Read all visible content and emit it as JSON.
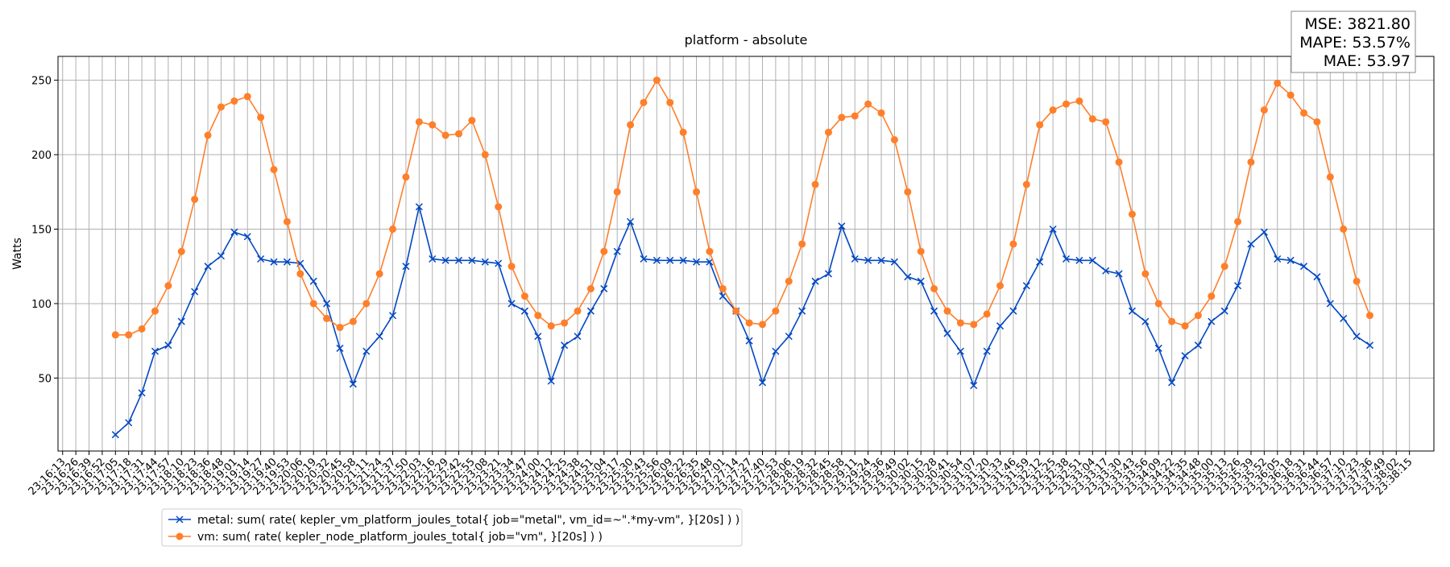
{
  "chart_data": {
    "type": "line",
    "title": "platform - absolute",
    "y_label": "Watts",
    "annotations": [
      "MSE: 3821.80",
      "MAPE: 53.57%",
      "MAE: 53.97"
    ],
    "categories": [
      "23:16:13",
      "23:16:26",
      "23:16:39",
      "23:16:52",
      "23:17:05",
      "23:17:18",
      "23:17:31",
      "23:17:44",
      "23:17:57",
      "23:18:10",
      "23:18:23",
      "23:18:36",
      "23:18:48",
      "23:19:01",
      "23:19:14",
      "23:19:27",
      "23:19:40",
      "23:19:53",
      "23:20:06",
      "23:20:19",
      "23:20:32",
      "23:20:45",
      "23:20:58",
      "23:21:11",
      "23:21:24",
      "23:21:37",
      "23:21:50",
      "23:22:03",
      "23:22:16",
      "23:22:29",
      "23:22:42",
      "23:22:55",
      "23:23:08",
      "23:23:21",
      "23:23:34",
      "23:23:47",
      "23:24:00",
      "23:24:12",
      "23:24:25",
      "23:24:38",
      "23:24:51",
      "23:25:04",
      "23:25:17",
      "23:25:30",
      "23:25:43",
      "23:25:56",
      "23:26:09",
      "23:26:22",
      "23:26:35",
      "23:26:48",
      "23:27:01",
      "23:27:14",
      "23:27:27",
      "23:27:40",
      "23:27:53",
      "23:28:06",
      "23:28:19",
      "23:28:32",
      "23:28:45",
      "23:28:58",
      "23:29:11",
      "23:29:24",
      "23:29:36",
      "23:29:49",
      "23:30:02",
      "23:30:15",
      "23:30:28",
      "23:30:41",
      "23:30:54",
      "23:31:07",
      "23:31:20",
      "23:31:33",
      "23:31:46",
      "23:31:59",
      "23:32:12",
      "23:32:25",
      "23:32:38",
      "23:32:51",
      "23:33:04",
      "23:33:17",
      "23:33:30",
      "23:33:43",
      "23:33:56",
      "23:34:09",
      "23:34:22",
      "23:34:35",
      "23:34:48",
      "23:35:00",
      "23:35:13",
      "23:35:26",
      "23:35:39",
      "23:35:52",
      "23:36:05",
      "23:36:18",
      "23:36:31",
      "23:36:44",
      "23:36:57",
      "23:37:10",
      "23:37:23",
      "23:37:36",
      "23:37:49",
      "23:38:02",
      "23:38:15"
    ],
    "series": [
      {
        "name": "metal: sum( rate( kepler_vm_platform_joules_total{ job=\"metal\", vm_id=~\".*my-vm\", }[20s] ) )",
        "color": "#0047c4",
        "marker": "x",
        "values": [
          null,
          null,
          null,
          null,
          12,
          20,
          40,
          68,
          72,
          88,
          108,
          125,
          132,
          148,
          145,
          130,
          128,
          128,
          127,
          115,
          100,
          70,
          46,
          68,
          78,
          92,
          125,
          165,
          130,
          129,
          129,
          129,
          128,
          127,
          100,
          95,
          78,
          48,
          72,
          78,
          95,
          110,
          135,
          155,
          130,
          129,
          129,
          129,
          128,
          128,
          105,
          95,
          75,
          47,
          68,
          78,
          95,
          115,
          120,
          152,
          130,
          129,
          129,
          128,
          118,
          115,
          95,
          80,
          68,
          45,
          68,
          85,
          95,
          112,
          128,
          150,
          130,
          129,
          129,
          122,
          120,
          95,
          88,
          70,
          47,
          65,
          72,
          88,
          95,
          112,
          140,
          148,
          130,
          129,
          125,
          118,
          100,
          90,
          78,
          72,
          null,
          null,
          null
        ]
      },
      {
        "name": "vm: sum( rate( kepler_node_platform_joules_total{ job=\"vm\", }[20s] ) )",
        "color": "#ff7f2a",
        "marker": "o",
        "values": [
          null,
          null,
          null,
          null,
          79,
          79,
          83,
          95,
          112,
          135,
          170,
          213,
          232,
          236,
          239,
          225,
          190,
          155,
          120,
          100,
          90,
          84,
          88,
          100,
          120,
          150,
          185,
          222,
          220,
          213,
          214,
          223,
          200,
          165,
          125,
          105,
          92,
          85,
          87,
          95,
          110,
          135,
          175,
          220,
          235,
          250,
          235,
          215,
          175,
          135,
          110,
          95,
          87,
          86,
          95,
          115,
          140,
          180,
          215,
          225,
          226,
          234,
          228,
          210,
          175,
          135,
          110,
          95,
          87,
          86,
          93,
          112,
          140,
          180,
          220,
          230,
          234,
          236,
          224,
          222,
          195,
          160,
          120,
          100,
          88,
          85,
          92,
          105,
          125,
          155,
          195,
          230,
          248,
          240,
          228,
          222,
          185,
          150,
          115,
          92,
          null,
          null,
          null
        ]
      }
    ],
    "ylim": [
      1,
      266
    ],
    "yticks": [
      50,
      100,
      150,
      200,
      250
    ],
    "grid": true,
    "legend": "lower left outside"
  }
}
